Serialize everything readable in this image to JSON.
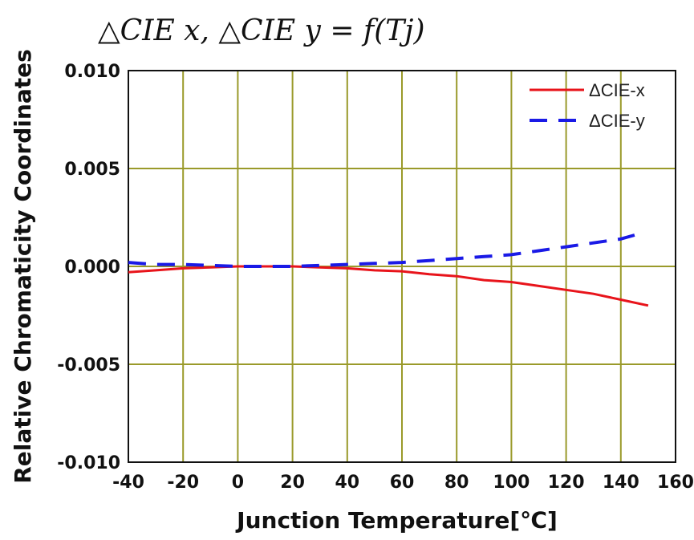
{
  "chart_data": {
    "type": "line",
    "title": "△CIE x, △CIE y = f(Tj)",
    "xlabel": "Junction Temperature[℃]",
    "ylabel": "Relative Chromaticity Coordinates",
    "xlim": [
      -40,
      160
    ],
    "ylim": [
      -0.01,
      0.01
    ],
    "xticks": [
      "-40",
      "-20",
      "0",
      "20",
      "40",
      "60",
      "80",
      "100",
      "120",
      "140",
      "160"
    ],
    "yticks": [
      "0.010",
      "0.005",
      "0.000",
      "-0.005",
      "-0.010"
    ],
    "xtick_values": [
      -40,
      -20,
      0,
      20,
      40,
      60,
      80,
      100,
      120,
      140,
      160
    ],
    "ytick_values": [
      0.01,
      0.005,
      0.0,
      -0.005,
      -0.01
    ],
    "grid": true,
    "grid_color": "#9a9a2a",
    "legend_position": "top-right",
    "series": [
      {
        "name": "ΔCIE-x",
        "color": "#e8141b",
        "style": "solid",
        "x": [
          -40,
          -30,
          -20,
          -10,
          0,
          10,
          20,
          30,
          40,
          50,
          60,
          70,
          80,
          90,
          100,
          110,
          120,
          130,
          140,
          150
        ],
        "y": [
          -0.0003,
          -0.0002,
          -0.0001,
          -5e-05,
          0.0,
          0.0,
          0.0,
          -5e-05,
          -0.0001,
          -0.0002,
          -0.00025,
          -0.0004,
          -0.0005,
          -0.0007,
          -0.0008,
          -0.001,
          -0.0012,
          -0.0014,
          -0.0017,
          -0.002
        ]
      },
      {
        "name": "ΔCIE-y",
        "color": "#1a1ae6",
        "style": "dashed",
        "x": [
          -40,
          -30,
          -20,
          -10,
          0,
          10,
          20,
          30,
          40,
          50,
          60,
          70,
          80,
          90,
          100,
          110,
          120,
          130,
          140,
          145
        ],
        "y": [
          0.0002,
          0.0001,
          0.0001,
          5e-05,
          0.0,
          0.0,
          0.0,
          5e-05,
          0.0001,
          0.00015,
          0.0002,
          0.0003,
          0.0004,
          0.0005,
          0.0006,
          0.0008,
          0.001,
          0.0012,
          0.0014,
          0.0016
        ]
      }
    ]
  }
}
